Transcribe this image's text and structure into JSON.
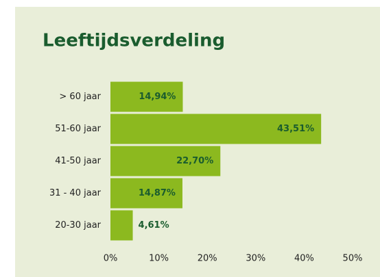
{
  "chart_data": {
    "type": "barh",
    "title": "Leeftijdsverdeling",
    "categories": [
      "> 60 jaar",
      "51-60 jaar",
      "41-50 jaar",
      "31 - 40 jaar",
      "20-30 jaar"
    ],
    "values": [
      14.94,
      43.51,
      22.7,
      14.87,
      4.61
    ],
    "value_labels": [
      "14,94%",
      "43,51%",
      "22,70%",
      "14,87%",
      "4,61%"
    ],
    "color": "#8cb91f",
    "xlim": [
      0,
      50
    ],
    "xticks": [
      {
        "value": 0,
        "label": "0%"
      },
      {
        "value": 10,
        "label": "10%"
      },
      {
        "value": 20,
        "label": "20%"
      },
      {
        "value": 30,
        "label": "30%"
      },
      {
        "value": 40,
        "label": "40%"
      },
      {
        "value": 50,
        "label": "50%"
      }
    ],
    "grid": false
  }
}
